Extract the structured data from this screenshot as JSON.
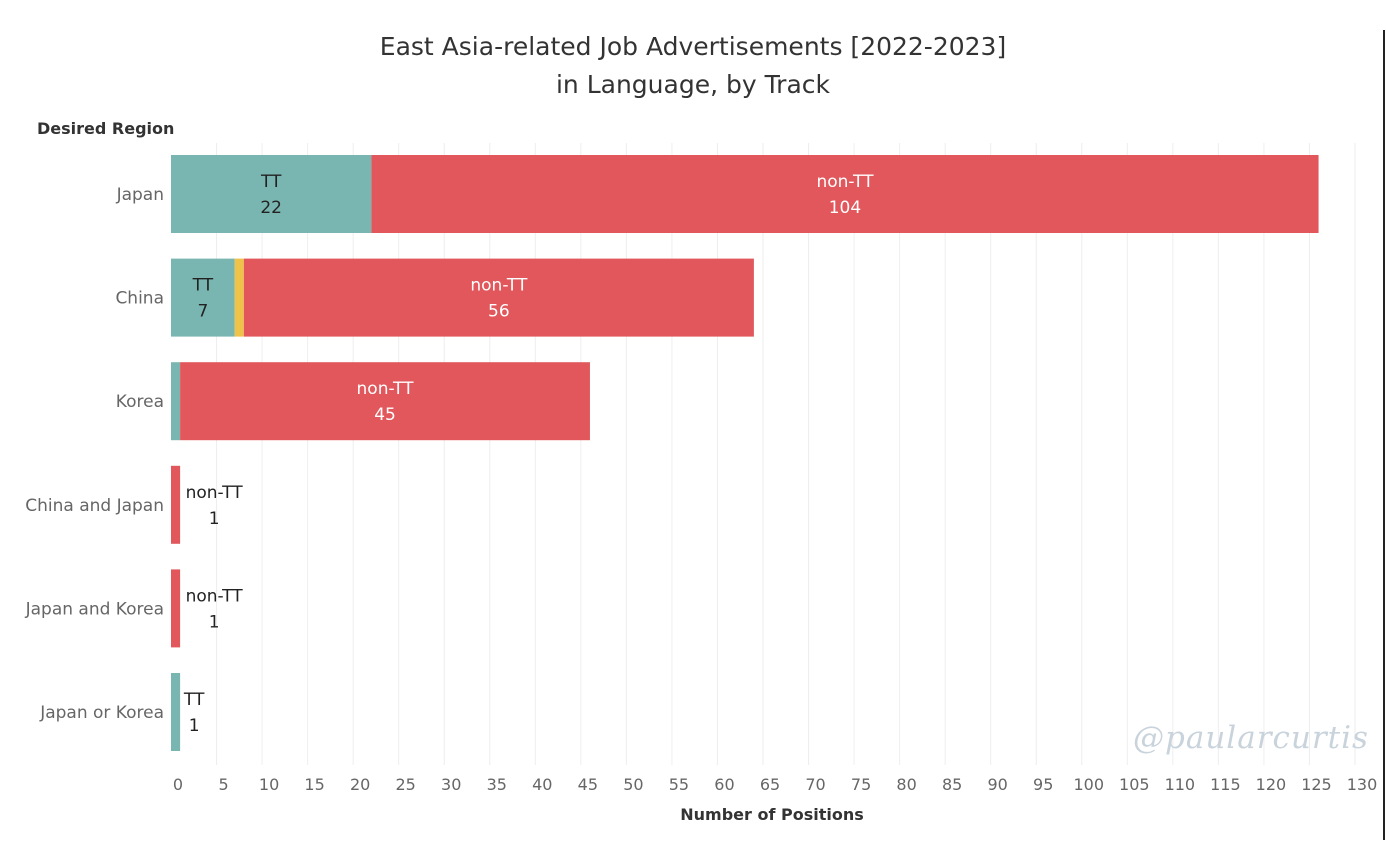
{
  "chart_data": {
    "type": "bar",
    "orientation": "horizontal",
    "stacked": true,
    "title_lines": [
      "East Asia-related Job Advertisements [2022-2023]",
      "in Language, by Track"
    ],
    "ylabel": "Desired Region",
    "xlabel": "Number of Positions",
    "xlim": [
      0,
      130
    ],
    "x_ticks": [
      0,
      5,
      10,
      15,
      20,
      25,
      30,
      35,
      40,
      45,
      50,
      55,
      60,
      65,
      70,
      75,
      80,
      85,
      90,
      95,
      100,
      105,
      110,
      115,
      120,
      125,
      130
    ],
    "grid": "vertical",
    "categories": [
      "Japan",
      "China",
      "Korea",
      "China and Japan",
      "Japan and Korea",
      "Japan or Korea"
    ],
    "series": [
      {
        "name": "TT",
        "color": "#7ab6b1",
        "values": [
          22,
          7,
          1,
          0,
          0,
          1
        ]
      },
      {
        "name": "",
        "color": "#efc24a",
        "values": [
          0,
          1,
          0,
          0,
          0,
          0
        ]
      },
      {
        "name": "non-TT",
        "color": "#e1575b",
        "values": [
          104,
          56,
          45,
          1,
          1,
          0
        ]
      }
    ],
    "segment_labels": [
      {
        "category": "Japan",
        "series": "TT",
        "text": "TT",
        "value": "22"
      },
      {
        "category": "Japan",
        "series": "non-TT",
        "text": "non-TT",
        "value": "104"
      },
      {
        "category": "China",
        "series": "TT",
        "text": "TT",
        "value": "7"
      },
      {
        "category": "China",
        "series": "non-TT",
        "text": "non-TT",
        "value": "56"
      },
      {
        "category": "Korea",
        "series": "non-TT",
        "text": "non-TT",
        "value": "45"
      },
      {
        "category": "China and Japan",
        "series": "non-TT",
        "text": "non-TT",
        "value": "1"
      },
      {
        "category": "Japan and Korea",
        "series": "non-TT",
        "text": "non-TT",
        "value": "1"
      },
      {
        "category": "Japan or Korea",
        "series": "TT",
        "text": "TT",
        "value": "1"
      }
    ]
  },
  "watermark": "@paularcurtis"
}
